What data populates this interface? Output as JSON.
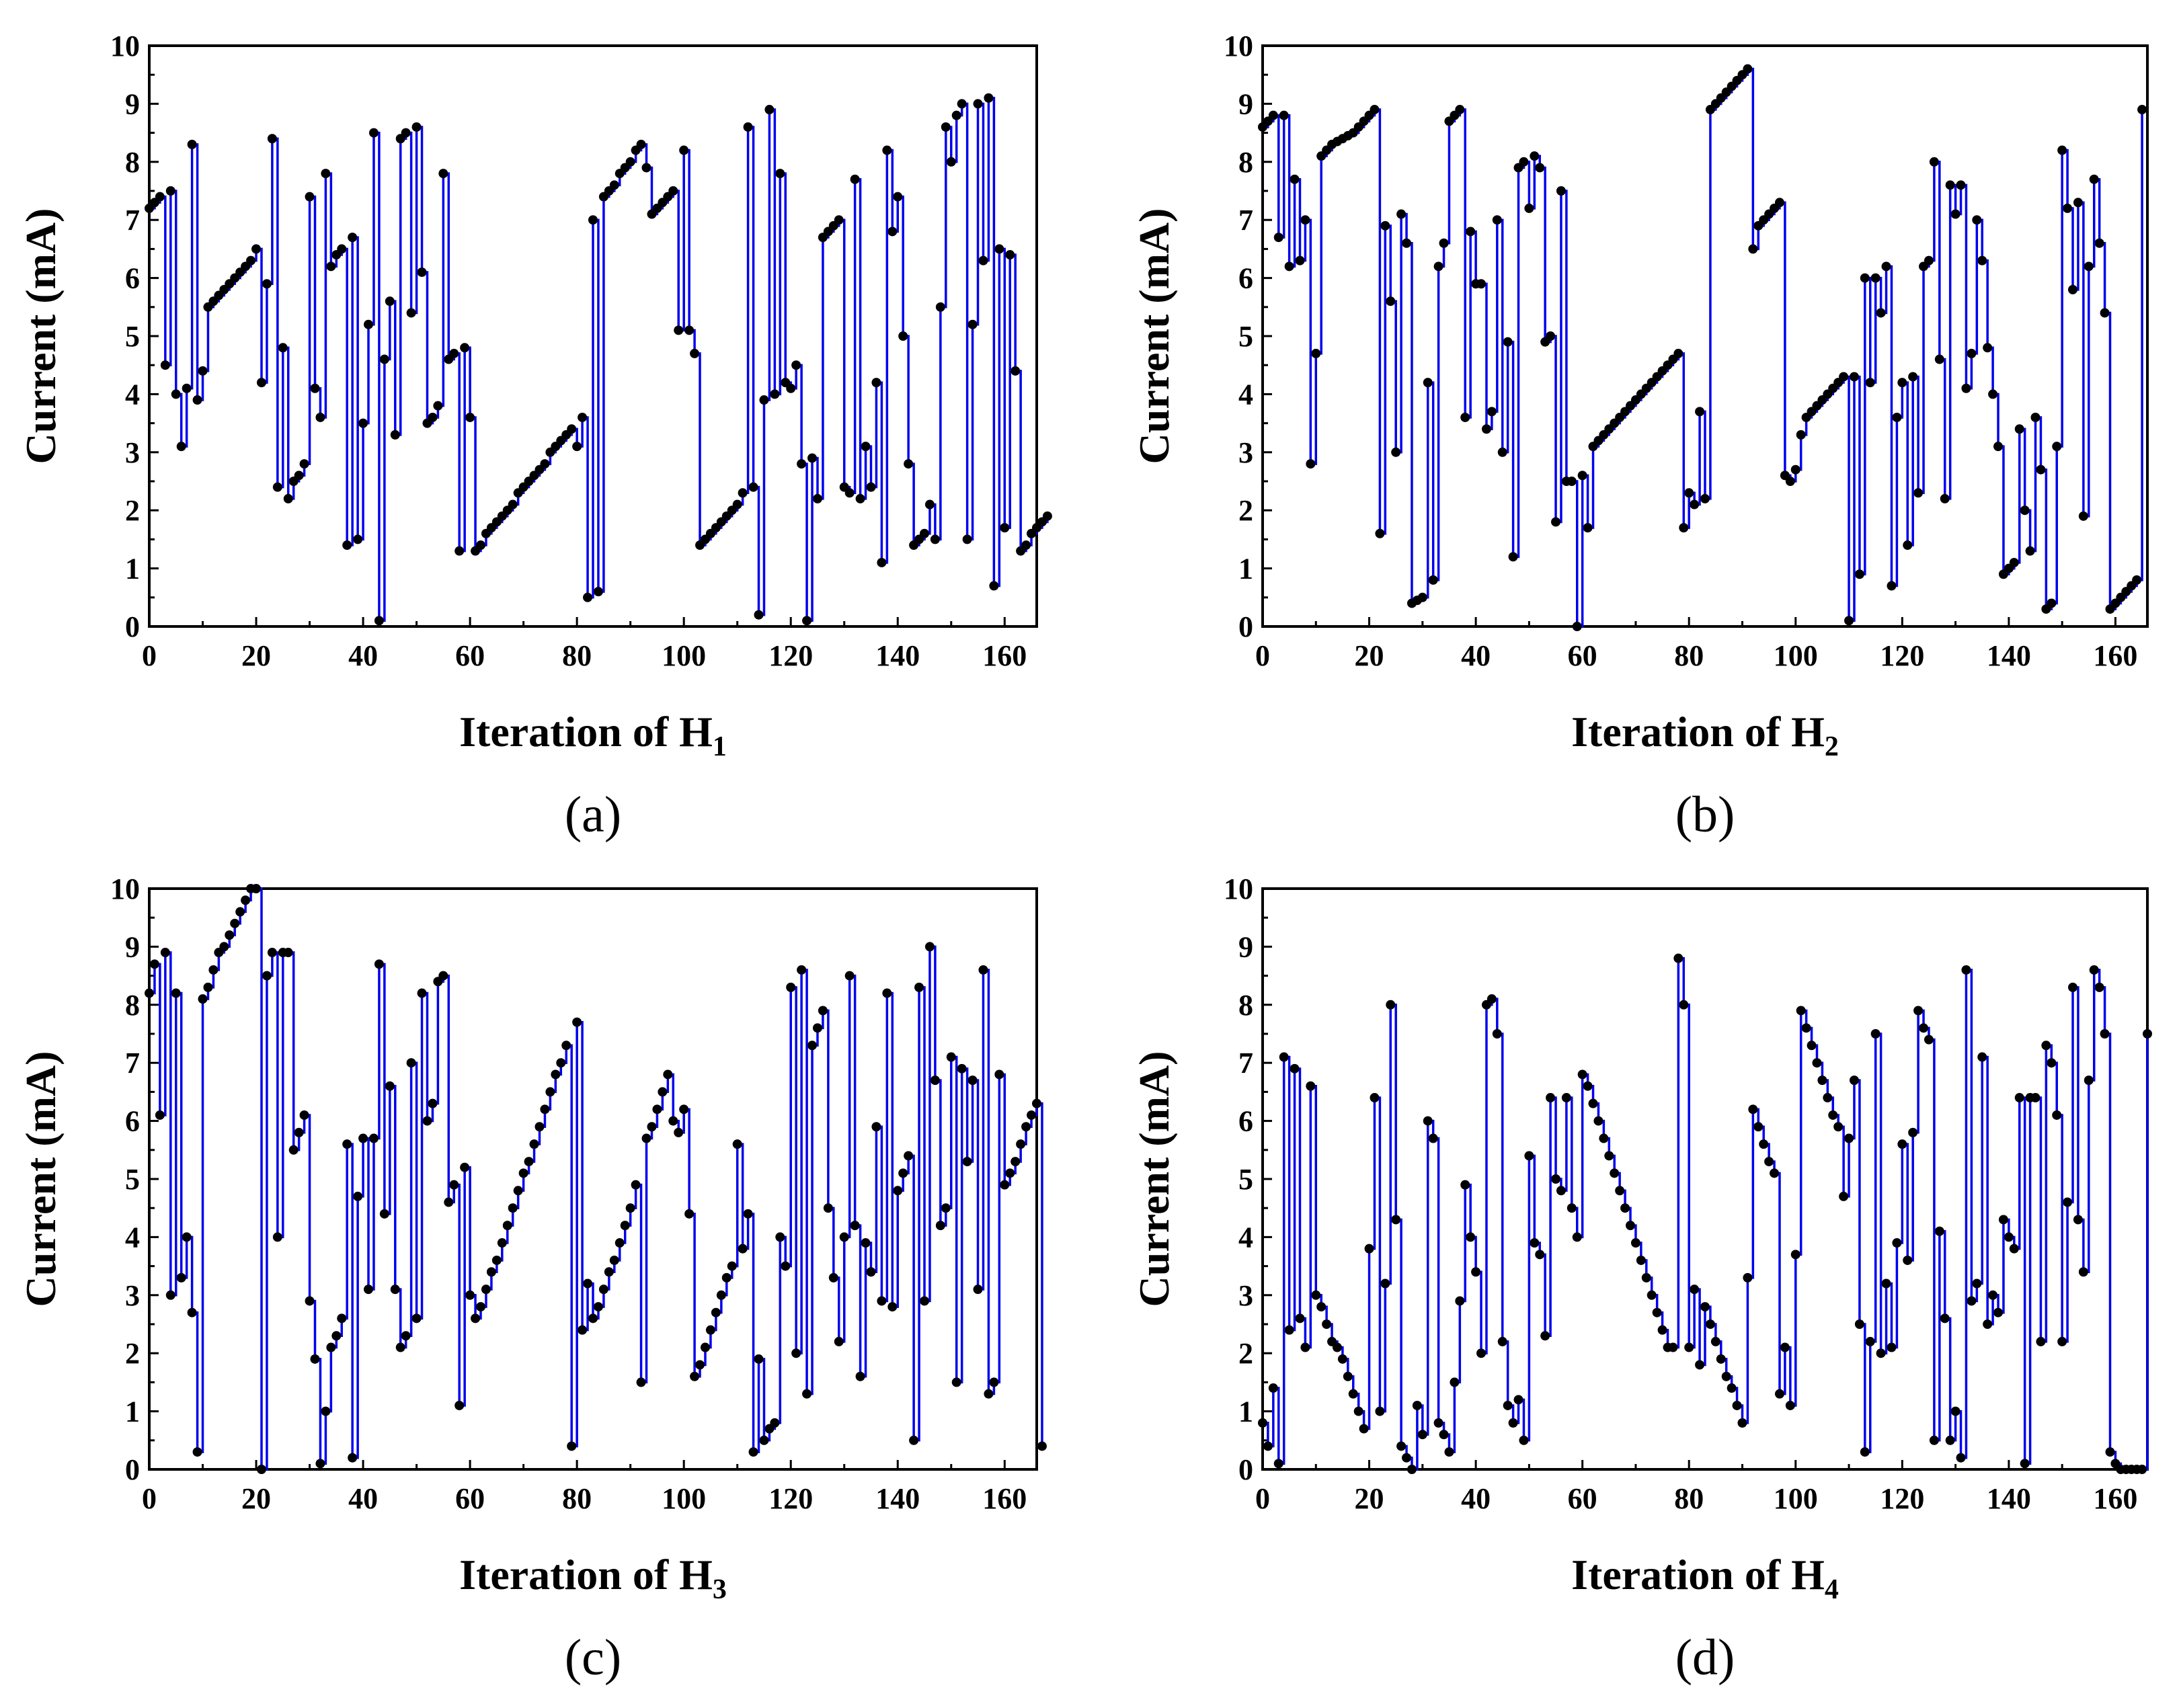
{
  "chart_data": [
    {
      "type": "line",
      "panel_label": "(a)",
      "xlabel_main": "Iteration of H",
      "xlabel_sub": "1",
      "ylabel": "Current (mA)",
      "xlim": [
        0,
        166
      ],
      "ylim": [
        0,
        10
      ],
      "xticks": [
        "0",
        "20",
        "40",
        "60",
        "80",
        "100",
        "120",
        "140",
        "160"
      ],
      "yticks": [
        "0",
        "1",
        "2",
        "3",
        "4",
        "5",
        "6",
        "7",
        "8",
        "9",
        "10"
      ],
      "series": [
        {
          "name": "H1",
          "step": true,
          "y": [
            7.2,
            7.3,
            7.4,
            4.5,
            7.5,
            4.0,
            3.1,
            4.1,
            8.3,
            3.9,
            4.4,
            5.5,
            5.6,
            5.7,
            5.8,
            5.9,
            6.0,
            6.1,
            6.2,
            6.3,
            6.5,
            4.2,
            5.9,
            8.4,
            2.4,
            4.8,
            2.2,
            2.5,
            2.6,
            2.8,
            7.4,
            4.1,
            3.6,
            7.8,
            6.2,
            6.4,
            6.5,
            1.4,
            6.7,
            1.5,
            3.5,
            5.2,
            8.5,
            0.1,
            4.6,
            5.6,
            3.3,
            8.4,
            8.5,
            5.4,
            8.6,
            6.1,
            3.5,
            3.6,
            3.8,
            7.8,
            4.6,
            4.7,
            1.3,
            4.8,
            3.6,
            1.3,
            1.4,
            1.6,
            1.7,
            1.8,
            1.9,
            2.0,
            2.1,
            2.3,
            2.4,
            2.5,
            2.6,
            2.7,
            2.8,
            3.0,
            3.1,
            3.2,
            3.3,
            3.4,
            3.1,
            3.6,
            0.5,
            7.0,
            0.6,
            7.4,
            7.5,
            7.6,
            7.8,
            7.9,
            8.0,
            8.2,
            8.3,
            7.9,
            7.1,
            7.2,
            7.3,
            7.4,
            7.5,
            5.1,
            8.2,
            5.1,
            4.7,
            1.4,
            1.5,
            1.6,
            1.7,
            1.8,
            1.9,
            2.0,
            2.1,
            2.3,
            8.6,
            2.4,
            0.2,
            3.9,
            8.9,
            4.0,
            7.8,
            4.2,
            4.1,
            4.5,
            2.8,
            0.1,
            2.9,
            2.2,
            6.7,
            6.8,
            6.9,
            7.0,
            2.4,
            2.3,
            7.7,
            2.2,
            3.1,
            2.4,
            4.2,
            1.1,
            8.2,
            6.8,
            7.4,
            5.0,
            2.8,
            1.4,
            1.5,
            1.6,
            2.1,
            1.5,
            5.5,
            8.6,
            8.0,
            8.8,
            9.0,
            1.5,
            5.2,
            9.0,
            6.3,
            9.1,
            0.7,
            6.5,
            1.7,
            6.4,
            4.4,
            1.3,
            1.4,
            1.6,
            1.7,
            1.8,
            1.9
          ]
        }
      ]
    },
    {
      "type": "line",
      "panel_label": "(b)",
      "xlabel_main": "Iteration of H",
      "xlabel_sub": "2",
      "ylabel": "Current (mA)",
      "xlim": [
        0,
        166
      ],
      "ylim": [
        0,
        10
      ],
      "xticks": [
        "0",
        "20",
        "40",
        "60",
        "80",
        "100",
        "120",
        "140",
        "160"
      ],
      "yticks": [
        "0",
        "1",
        "2",
        "3",
        "4",
        "5",
        "6",
        "7",
        "8",
        "9",
        "10"
      ],
      "series": [
        {
          "name": "H2",
          "step": true,
          "y": [
            8.6,
            8.7,
            8.8,
            6.7,
            8.8,
            6.2,
            7.7,
            6.3,
            7.0,
            2.8,
            4.7,
            8.1,
            8.2,
            8.3,
            8.35,
            8.4,
            8.45,
            8.5,
            8.6,
            8.7,
            8.8,
            8.9,
            1.6,
            6.9,
            5.6,
            3.0,
            7.1,
            6.6,
            0.4,
            0.45,
            0.5,
            4.2,
            0.8,
            6.2,
            6.6,
            8.7,
            8.8,
            8.9,
            3.6,
            6.8,
            5.9,
            5.9,
            3.4,
            3.7,
            7.0,
            3.0,
            4.9,
            1.2,
            7.9,
            8.0,
            7.2,
            8.1,
            7.9,
            4.9,
            5.0,
            1.8,
            7.5,
            2.5,
            2.5,
            0.0,
            2.6,
            1.7,
            3.1,
            3.2,
            3.3,
            3.4,
            3.5,
            3.6,
            3.7,
            3.8,
            3.9,
            4.0,
            4.1,
            4.2,
            4.3,
            4.4,
            4.5,
            4.6,
            4.7,
            1.7,
            2.3,
            2.1,
            3.7,
            2.2,
            8.9,
            9.0,
            9.1,
            9.2,
            9.3,
            9.4,
            9.5,
            9.6,
            6.5,
            6.9,
            7.0,
            7.1,
            7.2,
            7.3,
            2.6,
            2.5,
            2.7,
            3.3,
            3.6,
            3.7,
            3.8,
            3.9,
            4.0,
            4.1,
            4.2,
            4.3,
            0.1,
            4.3,
            0.9,
            6.0,
            4.2,
            6.0,
            5.4,
            6.2,
            0.7,
            3.6,
            4.2,
            1.4,
            4.3,
            2.3,
            6.2,
            6.3,
            8.0,
            4.6,
            2.2,
            7.6,
            7.1,
            7.6,
            4.1,
            4.7,
            7.0,
            6.3,
            4.8,
            4.0,
            3.1,
            0.9,
            1.0,
            1.1,
            3.4,
            2.0,
            1.3,
            3.6,
            2.7,
            0.3,
            0.4,
            3.1,
            8.2,
            7.2,
            5.8,
            7.3,
            1.9,
            6.2,
            7.7,
            6.6,
            5.4,
            0.3,
            0.4,
            0.5,
            0.6,
            0.7,
            0.8,
            8.9
          ]
        }
      ]
    },
    {
      "type": "line",
      "panel_label": "(c)",
      "xlabel_main": "Iteration of H",
      "xlabel_sub": "3",
      "ylabel": "Current (mA)",
      "xlim": [
        0,
        166
      ],
      "ylim": [
        0,
        10
      ],
      "xticks": [
        "0",
        "20",
        "40",
        "60",
        "80",
        "100",
        "120",
        "140",
        "160"
      ],
      "yticks": [
        "0",
        "1",
        "2",
        "3",
        "4",
        "5",
        "6",
        "7",
        "8",
        "9",
        "10"
      ],
      "series": [
        {
          "name": "H3",
          "step": true,
          "y": [
            8.2,
            8.7,
            6.1,
            8.9,
            3.0,
            8.2,
            3.3,
            4.0,
            2.7,
            0.3,
            8.1,
            8.3,
            8.6,
            8.9,
            9.0,
            9.2,
            9.4,
            9.6,
            9.8,
            10.0,
            10.0,
            0.0,
            8.5,
            8.9,
            4.0,
            8.9,
            8.9,
            5.5,
            5.8,
            6.1,
            2.9,
            1.9,
            0.1,
            1.0,
            2.1,
            2.3,
            2.6,
            5.6,
            0.2,
            4.7,
            5.7,
            3.1,
            5.7,
            8.7,
            4.4,
            6.6,
            3.1,
            2.1,
            2.3,
            7.0,
            2.6,
            8.2,
            6.0,
            6.3,
            8.4,
            8.5,
            4.6,
            4.9,
            1.1,
            5.2,
            3.0,
            2.6,
            2.8,
            3.1,
            3.4,
            3.6,
            3.9,
            4.2,
            4.5,
            4.8,
            5.1,
            5.3,
            5.6,
            5.9,
            6.2,
            6.5,
            6.8,
            7.0,
            7.3,
            0.4,
            7.7,
            2.4,
            3.2,
            2.6,
            2.8,
            3.1,
            3.4,
            3.6,
            3.9,
            4.2,
            4.5,
            4.9,
            1.5,
            5.7,
            5.9,
            6.2,
            6.5,
            6.8,
            6.0,
            5.8,
            6.2,
            4.4,
            1.6,
            1.8,
            2.1,
            2.4,
            2.7,
            3.0,
            3.3,
            3.5,
            5.6,
            3.8,
            4.4,
            0.3,
            1.9,
            0.5,
            0.7,
            0.8,
            4.0,
            3.5,
            8.3,
            2.0,
            8.6,
            1.3,
            7.3,
            7.6,
            7.9,
            4.5,
            3.3,
            2.2,
            4.0,
            8.5,
            4.2,
            1.6,
            3.9,
            3.4,
            5.9,
            2.9,
            8.2,
            2.8,
            4.8,
            5.1,
            5.4,
            0.5,
            8.3,
            2.9,
            9.0,
            6.7,
            4.2,
            4.5,
            7.1,
            1.5,
            6.9,
            5.3,
            6.7,
            3.1,
            8.6,
            1.3,
            1.5,
            6.8,
            4.9,
            5.1,
            5.3,
            5.6,
            5.9,
            6.1,
            6.3,
            0.4
          ]
        }
      ]
    },
    {
      "type": "line",
      "panel_label": "(d)",
      "xlabel_main": "Iteration of H",
      "xlabel_sub": "4",
      "ylabel": "Current (mA)",
      "xlim": [
        0,
        166
      ],
      "ylim": [
        0,
        10
      ],
      "xticks": [
        "0",
        "20",
        "40",
        "60",
        "80",
        "100",
        "120",
        "140",
        "160"
      ],
      "yticks": [
        "0",
        "1",
        "2",
        "3",
        "4",
        "5",
        "6",
        "7",
        "8",
        "9",
        "10"
      ],
      "series": [
        {
          "name": "H4",
          "step": true,
          "y": [
            0.8,
            0.4,
            1.4,
            0.1,
            7.1,
            2.4,
            6.9,
            2.6,
            2.1,
            6.6,
            3.0,
            2.8,
            2.5,
            2.2,
            2.1,
            1.9,
            1.6,
            1.3,
            1.0,
            0.7,
            3.8,
            6.4,
            1.0,
            3.2,
            8.0,
            4.3,
            0.4,
            0.2,
            0.0,
            1.1,
            0.6,
            6.0,
            5.7,
            0.8,
            0.6,
            0.3,
            1.5,
            2.9,
            4.9,
            4.0,
            3.4,
            2.0,
            8.0,
            8.1,
            7.5,
            2.2,
            1.1,
            0.8,
            1.2,
            0.5,
            5.4,
            3.9,
            3.7,
            2.3,
            6.4,
            5.0,
            4.8,
            6.4,
            4.5,
            4.0,
            6.8,
            6.6,
            6.3,
            6.0,
            5.7,
            5.4,
            5.1,
            4.8,
            4.5,
            4.2,
            3.9,
            3.6,
            3.3,
            3.0,
            2.7,
            2.4,
            2.1,
            2.1,
            8.8,
            8.0,
            2.1,
            3.1,
            1.8,
            2.8,
            2.5,
            2.2,
            1.9,
            1.6,
            1.4,
            1.1,
            0.8,
            3.3,
            6.2,
            5.9,
            5.6,
            5.3,
            5.1,
            1.3,
            2.1,
            1.1,
            3.7,
            7.9,
            7.6,
            7.3,
            7.0,
            6.7,
            6.4,
            6.1,
            5.9,
            4.7,
            5.7,
            6.7,
            2.5,
            0.3,
            2.2,
            7.5,
            2.0,
            3.2,
            2.1,
            3.9,
            5.6,
            3.6,
            5.8,
            7.9,
            7.6,
            7.4,
            0.5,
            4.1,
            2.6,
            0.5,
            1.0,
            0.2,
            8.6,
            2.9,
            3.2,
            7.1,
            2.5,
            3.0,
            2.7,
            4.3,
            4.0,
            3.8,
            6.4,
            0.1,
            6.4,
            6.4,
            2.2,
            7.3,
            7.0,
            6.1,
            2.2,
            4.6,
            8.3,
            4.3,
            3.4,
            6.7,
            8.6,
            8.3,
            7.5,
            0.3,
            0.1,
            0.0,
            0.0,
            0.0,
            0.0,
            0.0,
            7.5
          ]
        }
      ]
    }
  ]
}
